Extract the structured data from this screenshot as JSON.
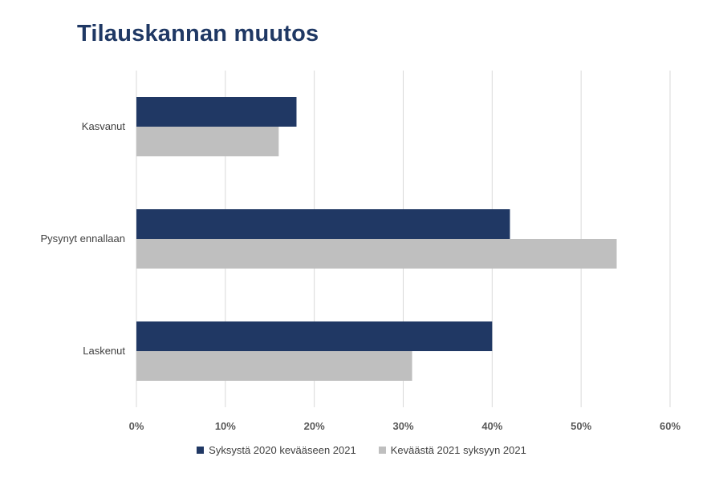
{
  "chart_data": {
    "type": "bar",
    "orientation": "horizontal",
    "title": "Tilauskannan muutos",
    "categories": [
      "Kasvanut",
      "Pysynyt ennallaan",
      "Laskenut"
    ],
    "series": [
      {
        "name": "Syksystä 2020 kevääseen 2021",
        "color": "#203864",
        "values": [
          18,
          42,
          40
        ]
      },
      {
        "name": "Keväästä 2021 syksyyn 2021",
        "color": "#bfbfbf",
        "values": [
          16,
          54,
          31
        ]
      }
    ],
    "xlim": [
      0,
      60
    ],
    "xticks": [
      "0%",
      "10%",
      "20%",
      "30%",
      "40%",
      "50%",
      "60%"
    ],
    "grid": true,
    "legend": "bottom"
  }
}
